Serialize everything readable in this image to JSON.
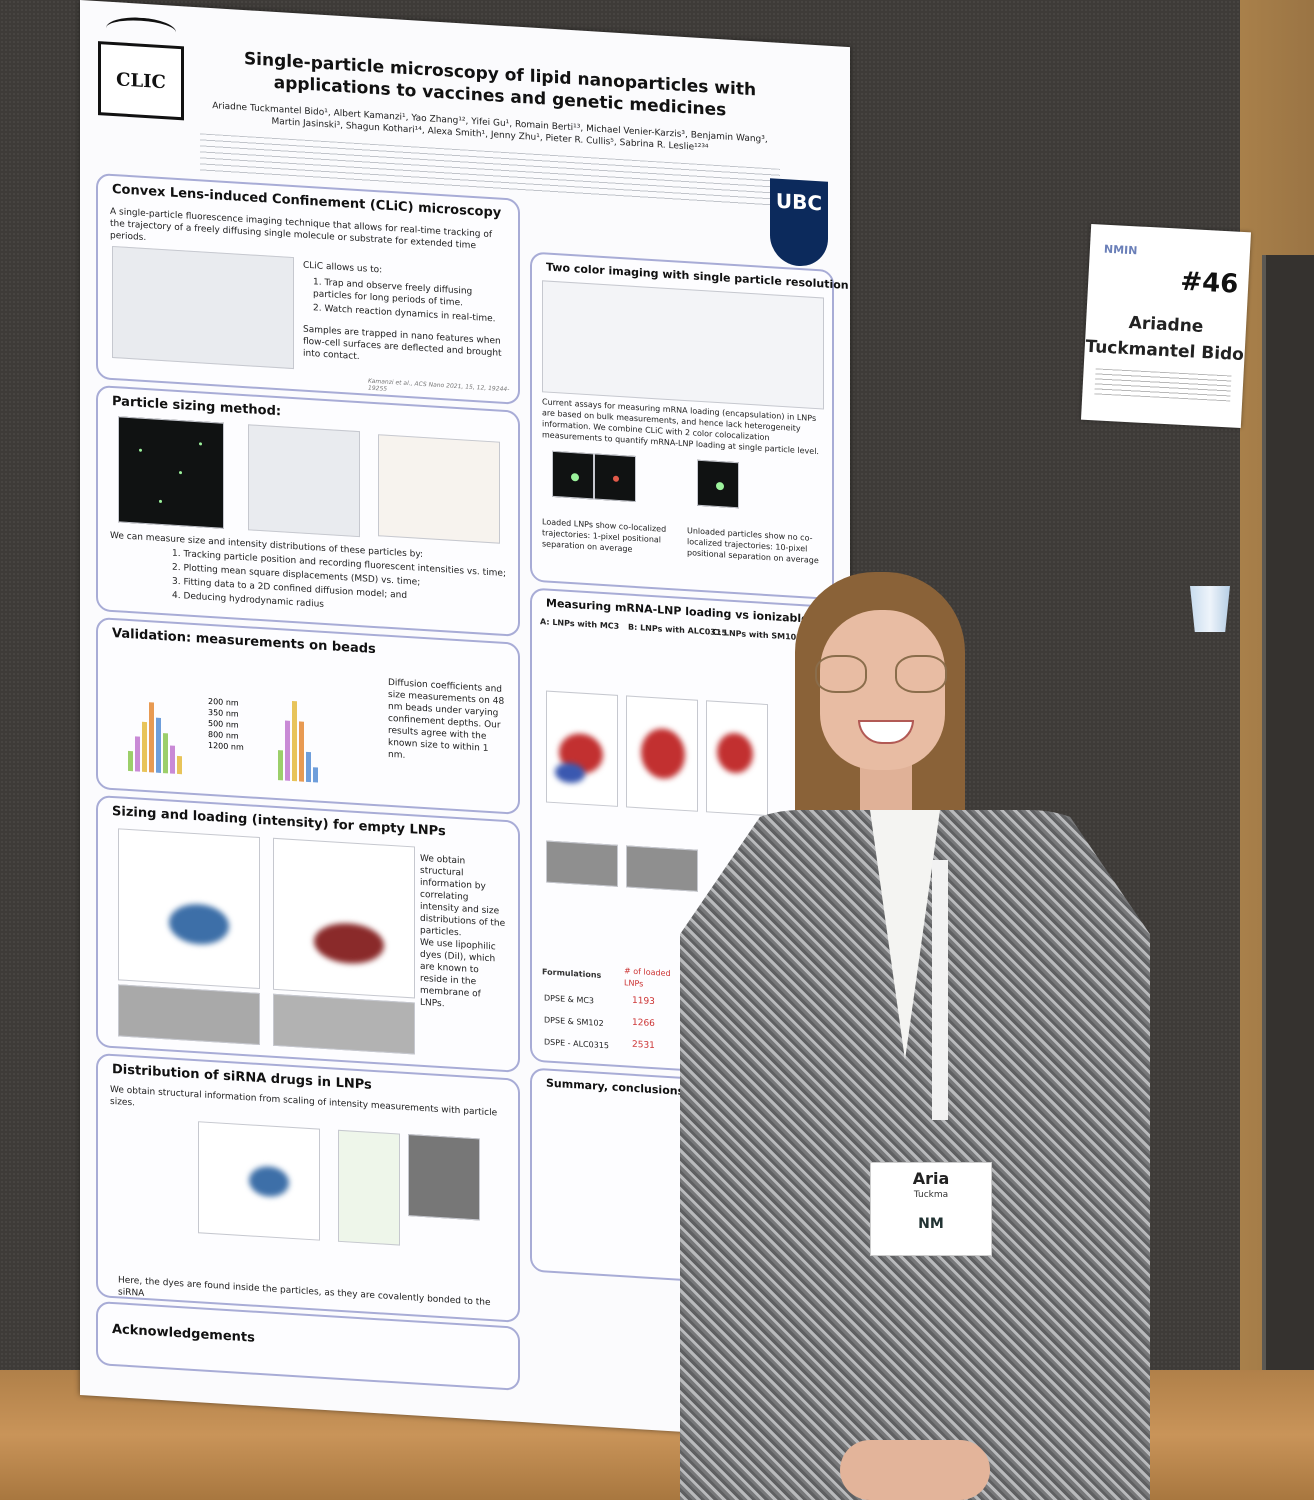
{
  "poster": {
    "logo_text": "CLIC",
    "ubc_text": "UBC",
    "title": "Single-particle microscopy of lipid nanoparticles with applications to vaccines and genetic medicines",
    "authors": "Ariadne Tuckmantel Bido¹, Albert Kamanzi¹, Yao Zhang¹², Yifei Gu¹, Romain Berti¹³, Michael Venier-Karzis³, Benjamin Wang³, Martin Jasinski³, Shagun Kothari¹⁴, Alexa Smith¹, Jenny Zhu¹, Pieter R. Cullis⁵, Sabrina R. Leslie¹²³⁴",
    "sections": {
      "clic": {
        "title": "Convex Lens-induced Confinement (CLiC) microscopy",
        "intro": "A single-particle fluorescence imaging technique that allows for real-time tracking of the trajectory of a freely diffusing single molecule or substrate for extended time periods.",
        "allows": "CLiC allows us to:",
        "point1": "1. Trap and observe freely diffusing particles for long periods of time.",
        "point2": "2. Watch reaction dynamics in real-time.",
        "samples": "Samples are trapped in nano features when flow-cell surfaces are deflected and brought into contact.",
        "citation": "Kamanzi et al., ACS Nano 2021, 15, 12, 19244-19255"
      },
      "sizing": {
        "title": "Particle sizing method:",
        "intro": "We can measure size and intensity distributions of these particles by:",
        "steps": [
          "1. Tracking particle position and recording fluorescent intensities vs. time;",
          "2. Plotting mean square displacements (MSD) vs. time;",
          "3. Fitting data to a 2D confined diffusion model; and",
          "4. Deducing hydrodynamic radius"
        ]
      },
      "validation": {
        "title": "Validation: measurements on beads",
        "text": "Diffusion coefficients and size measurements on 48 nm beads under varying confinement depths. Our results agree with the known size to within 1 nm.",
        "legend": [
          "200 nm",
          "350 nm",
          "500 nm",
          "800 nm",
          "1200 nm"
        ]
      },
      "empty_lnps": {
        "title": "Sizing and loading (intensity) for empty LNPs",
        "text1": "We obtain structural information by correlating intensity and size distributions of the particles.",
        "text2": "We use lipophilic dyes (DiI), which are known to reside in the membrane of LNPs."
      },
      "sirna": {
        "title": "Distribution of siRNA drugs in LNPs",
        "text": "We obtain structural information from scaling of intensity measurements with particle sizes.",
        "footer": "Here, the dyes are found inside the particles, as they are covalently bonded to the siRNA"
      },
      "acknowledgements": {
        "title": "Acknowledgements"
      },
      "two_color": {
        "title": "Two color imaging with single particle resolution",
        "text": "Current assays for measuring mRNA loading (encapsulation) in LNPs are based on bulk measurements, and hence lack heterogeneity information. We combine CLiC with 2 color colocalization measurements to quantify mRNA-LNP loading at single particle level.",
        "loaded": "Loaded LNPs show co-localized trajectories: 1-pixel positional separation on average",
        "unloaded": "Unloaded particles show no co-localized trajectories: 10-pixel positional separation on average"
      },
      "mrna_loading": {
        "title": "Measuring mRNA-LNP loading vs ionizable lipids",
        "col_a": "A: LNPs with MC3",
        "col_b": "B: LNPs with ALC0315",
        "col_c": "C: LNPs with SM102",
        "table_header": "Formulations",
        "table_col": "# of loaded LNPs",
        "rows": [
          {
            "name": "DPSE & MC3",
            "value": "1193"
          },
          {
            "name": "DPSE & SM102",
            "value": "1266"
          },
          {
            "name": "DSPE - ALC0315",
            "value": "2531"
          }
        ]
      },
      "summary": {
        "title": "Summary, conclusions and"
      }
    }
  },
  "name_card": {
    "logo": "NMIN",
    "number": "#46",
    "name_line1": "Ariadne",
    "name_line2": "Tuckmantel Bido"
  },
  "badge": {
    "name": "Aria",
    "surname": "Tuckma",
    "org": "NM"
  }
}
